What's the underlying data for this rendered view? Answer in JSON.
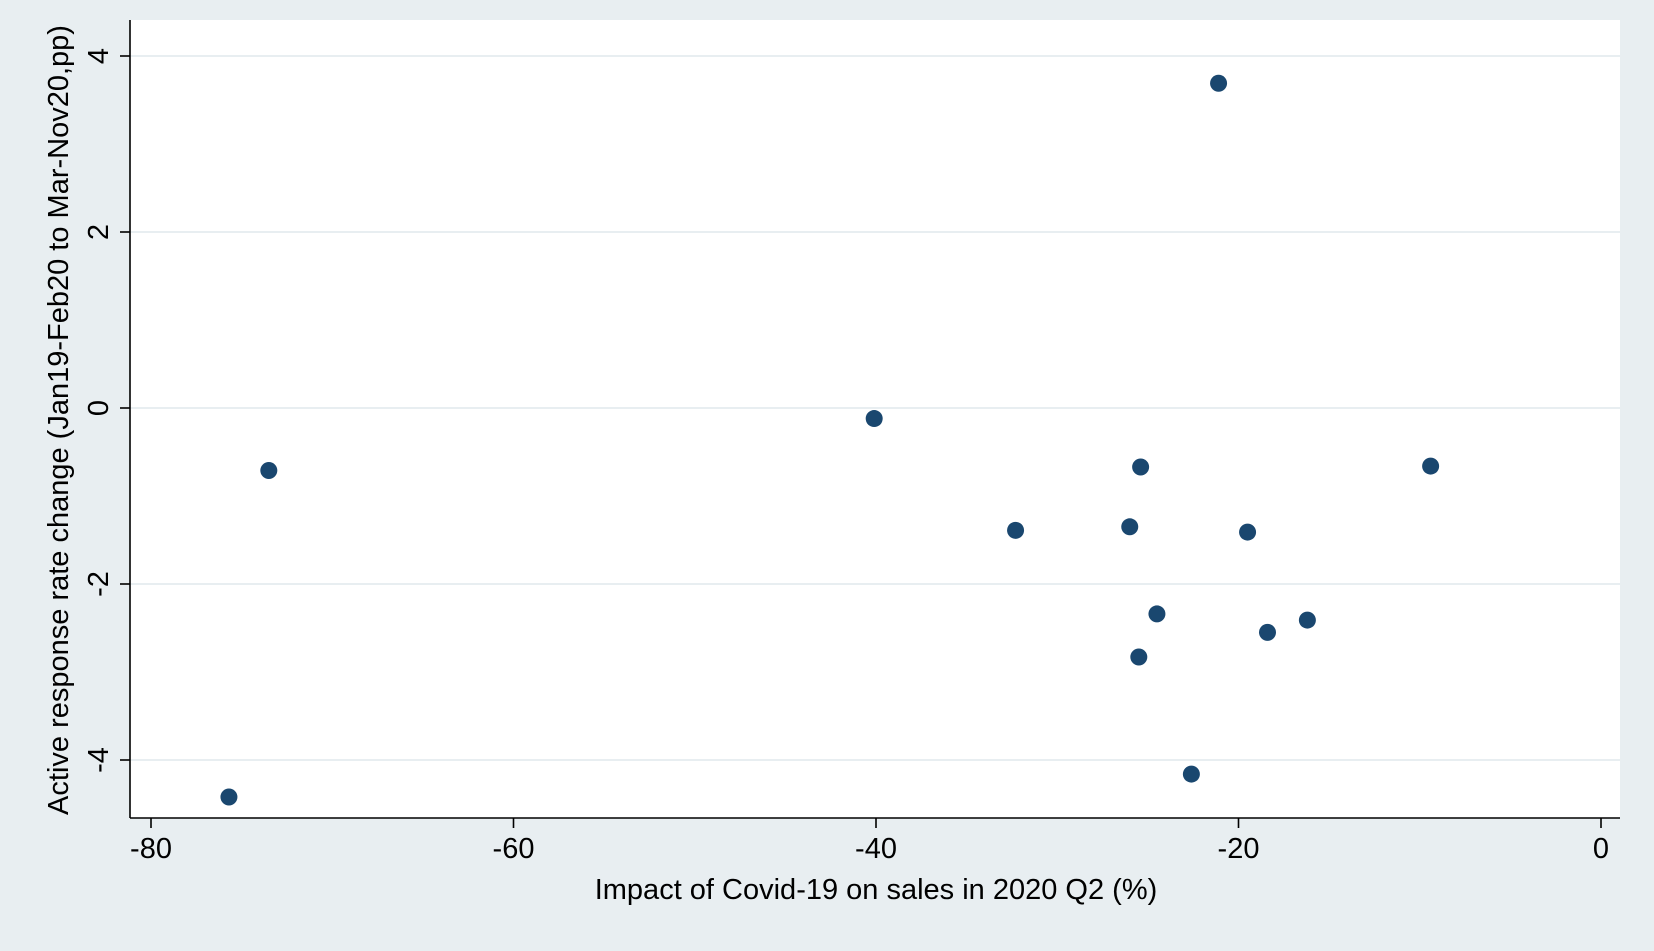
{
  "chart_data": {
    "type": "scatter",
    "title": "",
    "xlabel": "Impact of Covid-19 on sales in 2020 Q2 (%)",
    "ylabel": "Active response rate change (Jan19-Feb20 to Mar-Nov20,pp)",
    "xlim": [
      -80,
      0
    ],
    "ylim": [
      -4.6,
      4.2
    ],
    "x_ticks": [
      -80,
      -60,
      -40,
      -20,
      0
    ],
    "y_ticks": [
      -4,
      -2,
      0,
      2,
      4
    ],
    "grid": true,
    "colors": {
      "background": "#e8eef1",
      "plot_area": "#ffffff",
      "marker": "#1a476f",
      "grid": "#e8eef1",
      "axis": "#000000"
    },
    "series": [
      {
        "points": [
          {
            "x": -75.7,
            "y": -4.42
          },
          {
            "x": -73.5,
            "y": -0.71
          },
          {
            "x": -40.1,
            "y": -0.12
          },
          {
            "x": -32.3,
            "y": -1.39
          },
          {
            "x": -26.0,
            "y": -1.35
          },
          {
            "x": -25.4,
            "y": -0.67
          },
          {
            "x": -25.5,
            "y": -2.83
          },
          {
            "x": -24.5,
            "y": -2.34
          },
          {
            "x": -22.6,
            "y": -4.16
          },
          {
            "x": -21.1,
            "y": 3.69
          },
          {
            "x": -19.5,
            "y": -1.41
          },
          {
            "x": -18.4,
            "y": -2.55
          },
          {
            "x": -16.2,
            "y": -2.41
          },
          {
            "x": -9.4,
            "y": -0.66
          }
        ]
      }
    ]
  }
}
